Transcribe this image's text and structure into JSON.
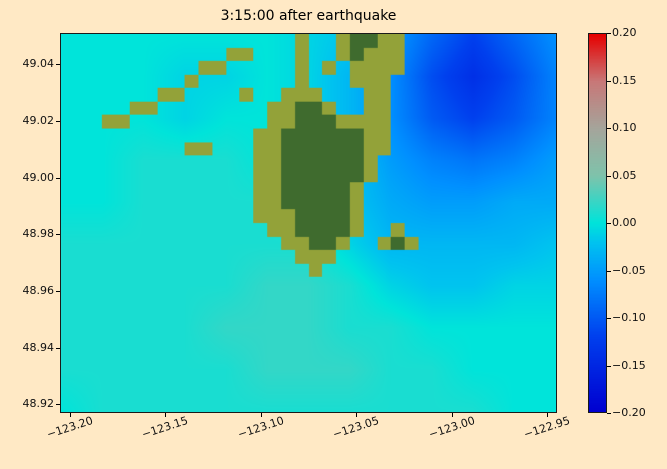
{
  "figure": {
    "background_color": "#ffe9c5"
  },
  "chart_data": {
    "type": "heatmap",
    "title": "3:15:00 after earthquake",
    "xlabel": "",
    "ylabel": "",
    "xlim": [
      -123.205,
      -122.945
    ],
    "ylim": [
      48.917,
      49.051
    ],
    "grid": false,
    "x_ticks": [
      -123.2,
      -123.15,
      -123.1,
      -123.05,
      -123.0,
      -122.95
    ],
    "x_tick_labels": [
      "−123.20",
      "−123.15",
      "−123.10",
      "−123.05",
      "−123.00",
      "−122.95"
    ],
    "y_ticks": [
      49.04,
      49.02,
      49.0,
      48.98,
      48.96,
      48.94,
      48.92
    ],
    "y_tick_labels": [
      "49.04",
      "49.02",
      "49.00",
      "48.98",
      "48.96",
      "48.94",
      "48.92"
    ],
    "colorbar": {
      "position": "right",
      "limits": [
        -0.2,
        0.2
      ],
      "tick_values": [
        0.2,
        0.15,
        0.1,
        0.05,
        0.0,
        -0.05,
        -0.1,
        -0.15,
        -0.2
      ],
      "tick_labels": [
        "0.20",
        "0.15",
        "0.10",
        "0.05",
        "0.00",
        "−0.05",
        "−0.10",
        "−0.15",
        "−0.20"
      ],
      "colormap_stops": [
        [
          -0.2,
          "#0000d0"
        ],
        [
          -0.12,
          "#0040ee"
        ],
        [
          -0.06,
          "#0090ff"
        ],
        [
          -0.02,
          "#00c4ef"
        ],
        [
          0.0,
          "#00e4da"
        ],
        [
          0.05,
          "#7fc3ab"
        ],
        [
          0.1,
          "#a5a59b"
        ],
        [
          0.15,
          "#c87878"
        ],
        [
          0.2,
          "#e60000"
        ]
      ]
    },
    "elevation_grid": {
      "description": "sea-surface elevation (m), bilinear field over plot extent",
      "lon_range": [
        -123.205,
        -122.945
      ],
      "lat_range": [
        49.051,
        48.917
      ],
      "row_order": "north_to_south",
      "values": [
        [
          0.0,
          0.0,
          0.0,
          0.0,
          0.0,
          0.0,
          -0.01,
          -0.02,
          -0.05,
          -0.09,
          -0.12,
          -0.09,
          -0.06
        ],
        [
          0.0,
          0.0,
          0.0,
          -0.01,
          -0.01,
          0.0,
          -0.01,
          -0.03,
          -0.06,
          -0.11,
          -0.14,
          -0.11,
          -0.07
        ],
        [
          0.0,
          0.0,
          0.0,
          -0.01,
          0.0,
          0.0,
          -0.01,
          -0.03,
          -0.06,
          -0.1,
          -0.12,
          -0.1,
          -0.07
        ],
        [
          0.0,
          0.0,
          0.01,
          0.01,
          0.01,
          0.0,
          -0.01,
          -0.02,
          -0.05,
          -0.07,
          -0.08,
          -0.07,
          -0.05
        ],
        [
          0.0,
          0.0,
          0.01,
          0.01,
          0.01,
          0.01,
          0.0,
          -0.02,
          -0.04,
          -0.05,
          -0.05,
          -0.04,
          -0.04
        ],
        [
          0.01,
          0.01,
          0.01,
          0.01,
          0.01,
          0.01,
          0.01,
          -0.01,
          -0.03,
          -0.03,
          -0.03,
          -0.03,
          -0.02
        ],
        [
          0.01,
          0.01,
          0.01,
          0.01,
          0.01,
          0.02,
          0.02,
          0.01,
          -0.01,
          -0.02,
          -0.02,
          -0.01,
          -0.01
        ],
        [
          0.01,
          0.01,
          0.01,
          0.01,
          0.02,
          0.02,
          0.02,
          0.01,
          0.01,
          0.0,
          0.0,
          0.0,
          0.0
        ],
        [
          0.01,
          0.01,
          0.01,
          0.01,
          0.01,
          0.02,
          0.02,
          0.02,
          0.01,
          0.01,
          0.0,
          0.0,
          0.0
        ],
        [
          0.0,
          0.01,
          0.01,
          0.01,
          0.01,
          0.01,
          0.01,
          0.01,
          0.01,
          0.01,
          0.01,
          0.0,
          0.0
        ]
      ]
    },
    "land_mask": {
      "legend": {
        "L": "land",
        "D": "land-dark-interior",
        ".": "water"
      },
      "rows": [
        ".................L..LDDLL...........",
        "............LL...L..LDLLL...........",
        "..........LL.....L.L.LLLL...........",
        ".........L.......L...LLL............",
        ".......LL....L..LLL...LL............",
        ".....LL........LLDDL..LL............",
        "...LL..........LLDDDLLLL............",
        "..............LLDDDDDDLL............",
        ".........LL...LLDDDDDDLL............",
        "..............LLDDDDDDL.............",
        "..............LLDDDDDDL.............",
        "..............LLDDDDDL..............",
        "..............LLDDDDDL..............",
        "..............LLLDDDDL..............",
        "...............LLDDDDL..L...........",
        "................LLDDL..LDL..........",
        ".................LLL................",
        "..................L.................",
        "....................................",
        "....................................",
        "....................................",
        "....................................",
        "....................................",
        "....................................",
        "....................................",
        "....................................",
        "....................................",
        "...................................."
      ]
    },
    "land_colors": {
      "L": "#93a239",
      "D": "#3f6b2e"
    }
  }
}
